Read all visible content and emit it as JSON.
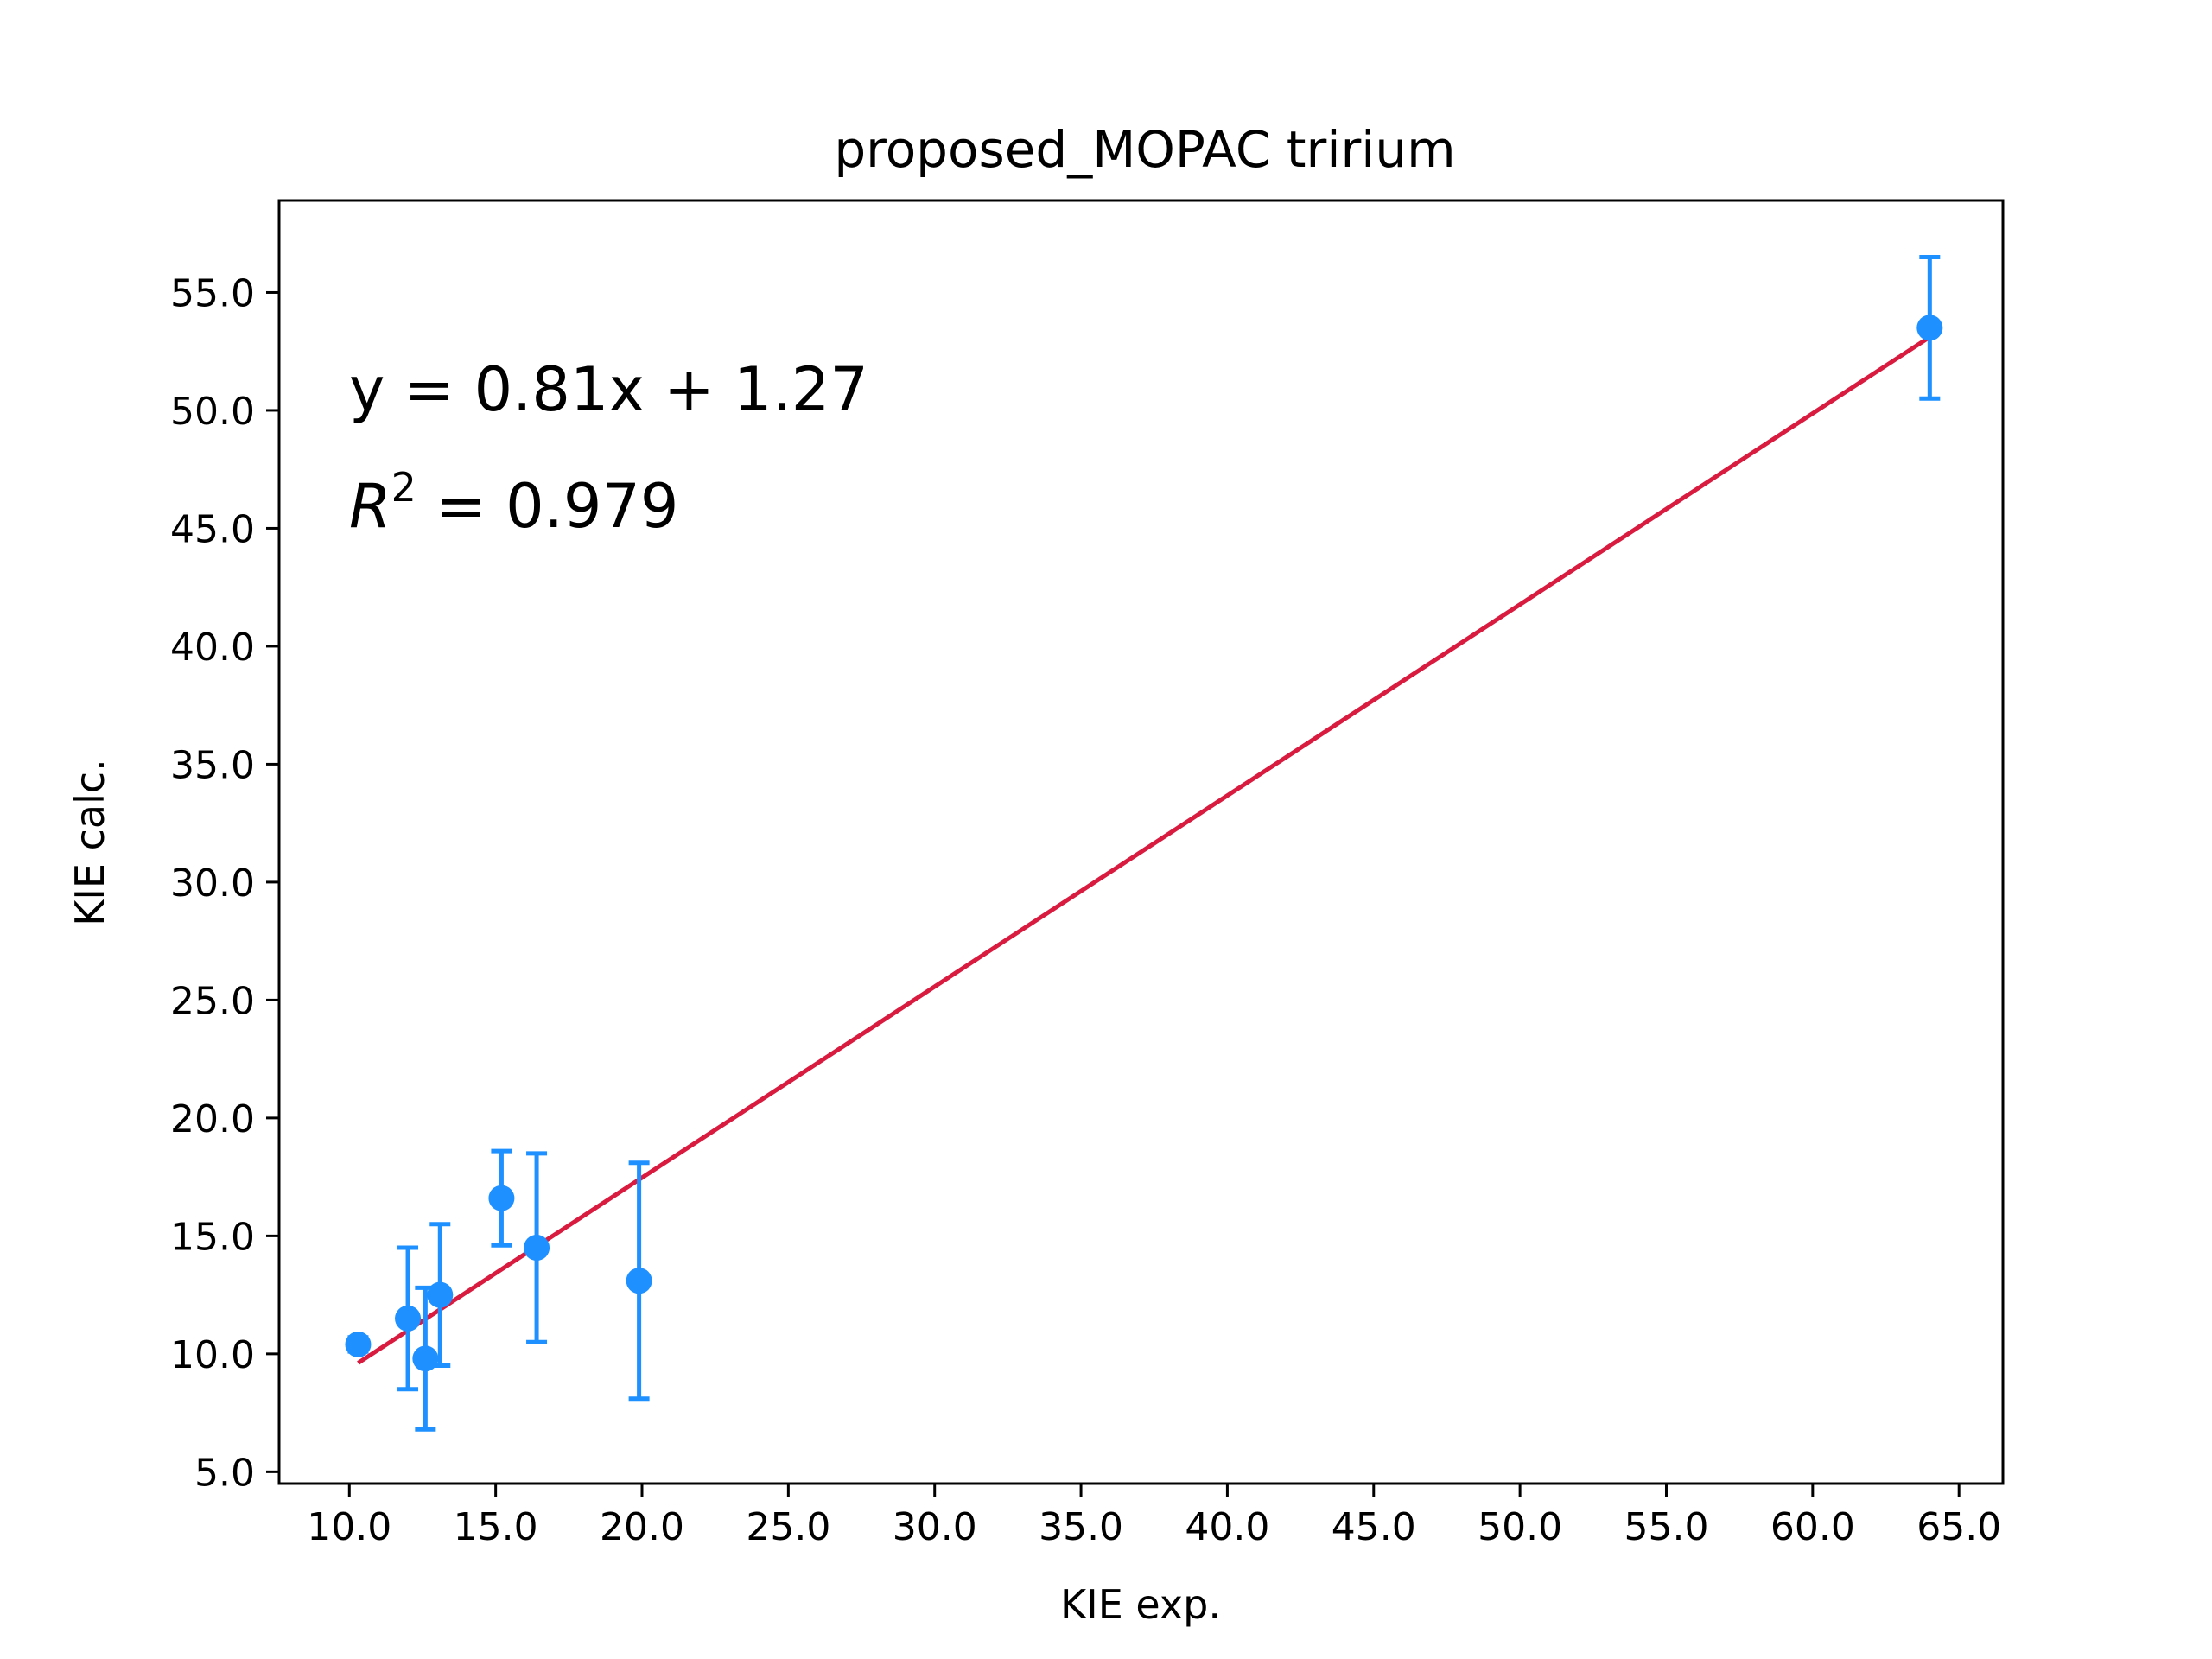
{
  "chart_data": {
    "type": "scatter",
    "title": "proposed_MOPAC tririum",
    "xlabel": "KIE exp.",
    "ylabel": "KIE calc.",
    "xlim": [
      7.6,
      66.5
    ],
    "ylim": [
      4.5,
      58.9
    ],
    "x_ticks": [
      "10.0",
      "15.0",
      "20.0",
      "25.0",
      "30.0",
      "35.0",
      "40.0",
      "45.0",
      "50.0",
      "55.0",
      "60.0",
      "65.0"
    ],
    "y_ticks": [
      "5.0",
      "10.0",
      "15.0",
      "20.0",
      "25.0",
      "30.0",
      "35.0",
      "40.0",
      "45.0",
      "50.0",
      "55.0"
    ],
    "grid": false,
    "series": [
      {
        "kind": "errorbar",
        "color": "#1e90ff",
        "points": [
          {
            "x": 10.3,
            "y": 10.4,
            "err": 0.3
          },
          {
            "x": 12.0,
            "y": 11.5,
            "err": 3.0
          },
          {
            "x": 12.6,
            "y": 9.8,
            "err": 3.0
          },
          {
            "x": 13.1,
            "y": 12.5,
            "err": 3.0
          },
          {
            "x": 15.2,
            "y": 16.6,
            "err": 2.0
          },
          {
            "x": 16.4,
            "y": 14.5,
            "err": 4.0
          },
          {
            "x": 19.9,
            "y": 13.1,
            "err": 5.0
          },
          {
            "x": 64.0,
            "y": 53.5,
            "err": 3.0
          }
        ]
      },
      {
        "kind": "fit-line",
        "color": "#d81b3f",
        "slope": 0.81,
        "intercept": 1.27,
        "x_range": [
          10.3,
          64.0
        ]
      }
    ],
    "annotations": {
      "equation": "y = 0.81x + 1.27",
      "r2_symbol": "R",
      "r2_exp": "2",
      "r2_value": " = 0.979"
    }
  }
}
